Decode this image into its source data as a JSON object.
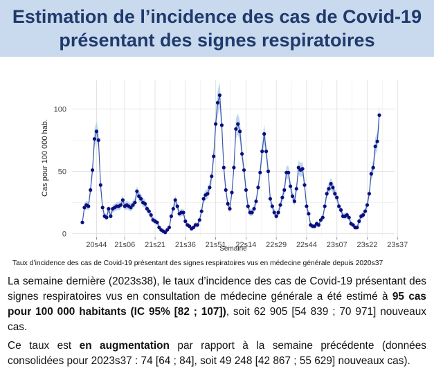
{
  "title": {
    "line1": "Estimation de l’incidence des cas de Covid-19",
    "line2": "présentant des signes respiratoires"
  },
  "caption": "Taux d’incidence des cas de Covid-19 présentant des signes respiratoires vus en médecine générale depuis 2020s37",
  "paragraph1": {
    "part1": "La semaine dernière (2023s38), le taux d’incidence des cas de Covid-19 présentant des signes respiratoires vus en consultation de médecine générale a été estimé à ",
    "bold": "95 cas pour 100 000 habitants (IC 95% [82 ; 107])",
    "part2": ", soit 62 905 [54 839 ; 70 971] nouveaux cas."
  },
  "paragraph2": {
    "part1": "Ce taux est ",
    "bold": "en augmentation",
    "part2": " par rapport à la semaine précédente (données consolidées pour 2023s37 : 74 [64 ; 84], soit 49 248 [42 867 ; 55 629] nouveaux cas)."
  },
  "colors": {
    "title_band": "#c9d9ee",
    "title_text": "#1f3a6b",
    "point": "#0d0d80",
    "line": "#3a4fa8",
    "ribbon": "#a9cce3"
  },
  "chart_data": {
    "type": "line",
    "title": "",
    "xlabel": "Semaine",
    "ylabel": "Cas pour 100 000 hab.",
    "ylim": [
      -3,
      123
    ],
    "yticks": [
      0,
      50,
      100
    ],
    "xtick_labels": [
      "20s44",
      "21s06",
      "21s21",
      "21s36",
      "21s51",
      "22s14",
      "22s29",
      "22s44",
      "23s07",
      "23s22",
      "23s37"
    ],
    "xtick_index": [
      7,
      21,
      36,
      51,
      66,
      81,
      96,
      111,
      126,
      141,
      156
    ],
    "start_week": "2020s37",
    "grid": true,
    "series": [
      {
        "name": "Taux d’incidence",
        "values": [
          9,
          21,
          23,
          22,
          35,
          51,
          76,
          82,
          75,
          39,
          21,
          14,
          13,
          20,
          14,
          20,
          21,
          22,
          22,
          23,
          27,
          22,
          23,
          22,
          21,
          23,
          25,
          34,
          30,
          28,
          25,
          24,
          20,
          18,
          15,
          11,
          10,
          9,
          5,
          3,
          2,
          1,
          3,
          5,
          14,
          20,
          27,
          22,
          16,
          17,
          17,
          10,
          7,
          6,
          4,
          5,
          7,
          7,
          11,
          18,
          28,
          31,
          32,
          37,
          46,
          62,
          88,
          105,
          111,
          87,
          53,
          35,
          24,
          20,
          33,
          53,
          84,
          88,
          82,
          64,
          51,
          35,
          22,
          17,
          17,
          20,
          26,
          37,
          49,
          66,
          80,
          66,
          50,
          28,
          22,
          17,
          14,
          17,
          23,
          29,
          35,
          49,
          49,
          38,
          30,
          26,
          36,
          53,
          51,
          52,
          39,
          22,
          16,
          7,
          6,
          6,
          8,
          7,
          11,
          13,
          22,
          32,
          36,
          40,
          37,
          32,
          29,
          22,
          19,
          14,
          14,
          15,
          13,
          8,
          7,
          5,
          5,
          10,
          14,
          15,
          18,
          23,
          32,
          48,
          53,
          70,
          74,
          95
        ]
      }
    ]
  }
}
